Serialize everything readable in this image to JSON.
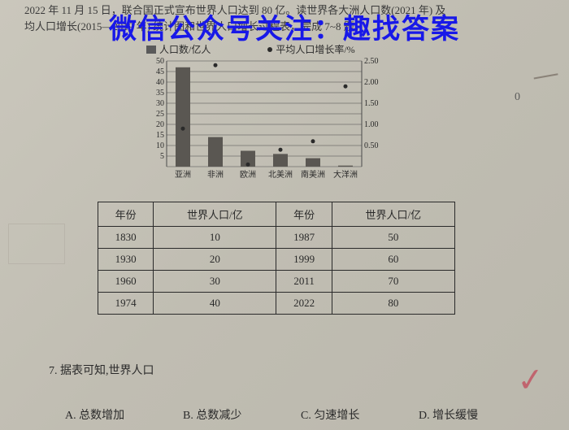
{
  "watermark": "微信公众号关注：趣找答案",
  "partial_text_1": "2022 年 11 月 15 日，联合国正式宣布世界人口达到 80 亿。读世界各大洲人口数(2021 年) 及",
  "partial_text_2": "均人口增长(2015—2019 年) 统计图和世界人口增长过程表，完成 7~8 题。",
  "zero_mark": "0",
  "chart": {
    "type": "bar+scatter",
    "legend": {
      "bar": "人口数/亿人",
      "dot": "平均人口增长率/%"
    },
    "categories": [
      "亚洲",
      "非洲",
      "欧洲",
      "北美洲",
      "南美洲",
      "大洋洲"
    ],
    "bar_values": [
      47,
      14,
      7.5,
      6,
      4,
      0.5
    ],
    "dot_values": [
      0.9,
      2.4,
      0.05,
      0.4,
      0.6,
      1.9
    ],
    "left_axis": {
      "min": 0,
      "max": 50,
      "step": 5,
      "ticks": [
        "5",
        "10",
        "15",
        "20",
        "25",
        "30",
        "35",
        "40",
        "45",
        "50"
      ]
    },
    "right_axis": {
      "min": 0,
      "max": 2.5,
      "step": 0.5,
      "ticks": [
        "0.50",
        "1.00",
        "1.50",
        "2.00",
        "2.50"
      ]
    },
    "bar_color": "#5a5752",
    "dot_color": "#2a2a2a",
    "grid_color": "#4a4a4a",
    "bg_color": "transparent",
    "font_size": 10
  },
  "table": {
    "headers": [
      "年份",
      "世界人口/亿",
      "年份",
      "世界人口/亿"
    ],
    "rows": [
      [
        "1830",
        "10",
        "1987",
        "50"
      ],
      [
        "1930",
        "20",
        "1999",
        "60"
      ],
      [
        "1960",
        "30",
        "2011",
        "70"
      ],
      [
        "1974",
        "40",
        "2022",
        "80"
      ]
    ]
  },
  "question": "7. 据表可知,世界人口",
  "options": {
    "a": "A. 总数增加",
    "b": "B. 总数减少",
    "c": "C. 匀速增长",
    "d": "D. 增长缓慢"
  }
}
